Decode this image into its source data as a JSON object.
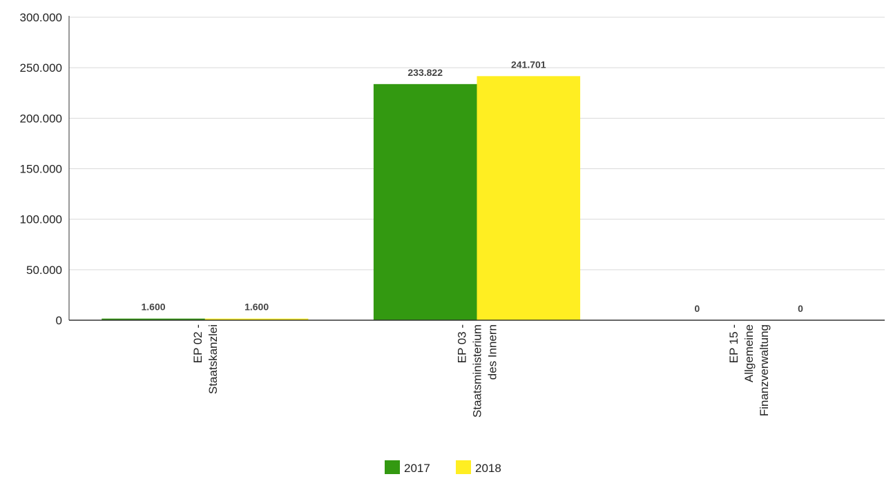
{
  "chart_data": {
    "type": "bar",
    "categories": [
      [
        "EP 02 -",
        "Staatskanzlei"
      ],
      [
        "EP 03 -",
        "Staatsministerium",
        "des Innern"
      ],
      [
        "EP 15 -",
        "Allgemeine",
        "Finanzverwaltung"
      ]
    ],
    "series": [
      {
        "name": "2017",
        "color": "#339911",
        "values": [
          1600,
          233822,
          0
        ],
        "labels": [
          "1.600",
          "233.822",
          "0"
        ]
      },
      {
        "name": "2018",
        "color": "#ffee22",
        "values": [
          1600,
          241701,
          0
        ],
        "labels": [
          "1.600",
          "241.701",
          "0"
        ]
      }
    ],
    "y_ticks": [
      {
        "value": 0,
        "label": "0"
      },
      {
        "value": 50000,
        "label": "50.000"
      },
      {
        "value": 100000,
        "label": "100.000"
      },
      {
        "value": 150000,
        "label": "150.000"
      },
      {
        "value": 200000,
        "label": "200.000"
      },
      {
        "value": 250000,
        "label": "250.000"
      },
      {
        "value": 300000,
        "label": "300.000"
      }
    ],
    "ylim": [
      0,
      300000
    ],
    "grid": true,
    "legend_position": "bottom-center"
  }
}
